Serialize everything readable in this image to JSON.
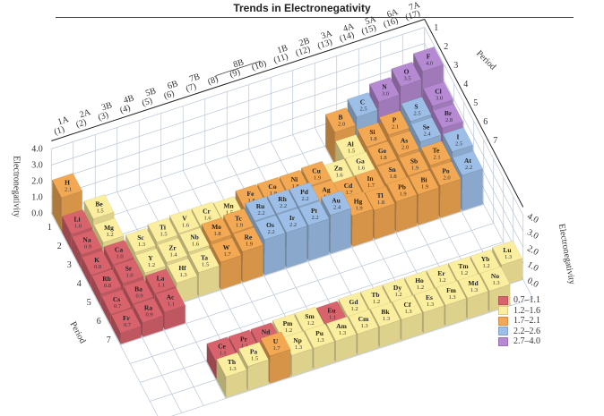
{
  "title": "Trends in Electronegativity",
  "chart_data": {
    "type": "bar3d",
    "title": "Trends in Electronegativity",
    "zlabel": "Electronegativity",
    "depth_label": "Period",
    "zlim": [
      0,
      4
    ],
    "z_ticks": [
      "0.0",
      "1.0",
      "2.0",
      "3.0",
      "4.0"
    ],
    "group_labels": [
      [
        "1A",
        "(1)"
      ],
      [
        "2A",
        "(2)"
      ],
      [
        "3B",
        "(3)"
      ],
      [
        "4B",
        "(4)"
      ],
      [
        "5B",
        "(5)"
      ],
      [
        "6B",
        "(6)"
      ],
      [
        "7B",
        "(7)"
      ],
      [
        "",
        "(8)"
      ],
      [
        "8B",
        "(9)"
      ],
      [
        "",
        "(10)"
      ],
      [
        "1B",
        "(11)"
      ],
      [
        "2B",
        "(12)"
      ],
      [
        "3A",
        "(13)"
      ],
      [
        "4A",
        "(14)"
      ],
      [
        "5A",
        "(15)"
      ],
      [
        "6A",
        "(16)"
      ],
      [
        "7A",
        "(17)"
      ]
    ],
    "period_labels": [
      "1",
      "2",
      "3",
      "4",
      "5",
      "6",
      "7"
    ],
    "legend": [
      {
        "label": "0.7–1.1",
        "color": "#d9636d"
      },
      {
        "label": "1.2–1.6",
        "color": "#fbee9e"
      },
      {
        "label": "1.7–2.1",
        "color": "#f3a853"
      },
      {
        "label": "2.2–2.6",
        "color": "#9dbfe7"
      },
      {
        "label": "2.7–4.0",
        "color": "#b68ad2"
      }
    ],
    "elements": [
      [
        "H",
        1,
        1,
        2.1
      ],
      [
        "Li",
        1,
        2,
        1.0
      ],
      [
        "Be",
        2,
        2,
        1.5
      ],
      [
        "B",
        13,
        2,
        2.0
      ],
      [
        "C",
        14,
        2,
        2.5
      ],
      [
        "N",
        15,
        2,
        3.0
      ],
      [
        "O",
        16,
        2,
        3.5
      ],
      [
        "F",
        17,
        2,
        4.0
      ],
      [
        "Na",
        1,
        3,
        0.9
      ],
      [
        "Mg",
        2,
        3,
        1.2
      ],
      [
        "Al",
        13,
        3,
        1.5
      ],
      [
        "Si",
        14,
        3,
        1.8
      ],
      [
        "P",
        15,
        3,
        2.1
      ],
      [
        "S",
        16,
        3,
        2.5
      ],
      [
        "Cl",
        17,
        3,
        3.0
      ],
      [
        "K",
        1,
        4,
        0.8
      ],
      [
        "Ca",
        2,
        4,
        1.0
      ],
      [
        "Sc",
        3,
        4,
        1.3
      ],
      [
        "Ti",
        4,
        4,
        1.5
      ],
      [
        "V",
        5,
        4,
        1.6
      ],
      [
        "Cr",
        6,
        4,
        1.6
      ],
      [
        "Mn",
        7,
        4,
        1.5
      ],
      [
        "Fe",
        8,
        4,
        1.8
      ],
      [
        "Co",
        9,
        4,
        1.8
      ],
      [
        "Ni",
        10,
        4,
        1.8
      ],
      [
        "Cu",
        11,
        4,
        1.9
      ],
      [
        "Zn",
        12,
        4,
        1.6
      ],
      [
        "Ga",
        13,
        4,
        1.6
      ],
      [
        "Ge",
        14,
        4,
        1.8
      ],
      [
        "As",
        15,
        4,
        2.0
      ],
      [
        "Se",
        16,
        4,
        2.4
      ],
      [
        "Br",
        17,
        4,
        2.8
      ],
      [
        "Rb",
        1,
        5,
        0.8
      ],
      [
        "Sr",
        2,
        5,
        1.0
      ],
      [
        "Y",
        3,
        5,
        1.2
      ],
      [
        "Zr",
        4,
        5,
        1.4
      ],
      [
        "Nb",
        5,
        5,
        1.6
      ],
      [
        "Mo",
        6,
        5,
        1.8
      ],
      [
        "Tc",
        7,
        5,
        1.9
      ],
      [
        "Ru",
        8,
        5,
        2.2
      ],
      [
        "Rh",
        9,
        5,
        2.2
      ],
      [
        "Pd",
        10,
        5,
        2.2
      ],
      [
        "Ag",
        11,
        5,
        1.9
      ],
      [
        "Cd",
        12,
        5,
        1.7
      ],
      [
        "In",
        13,
        5,
        1.7
      ],
      [
        "Sn",
        14,
        5,
        1.8
      ],
      [
        "Sb",
        15,
        5,
        1.9
      ],
      [
        "Te",
        16,
        5,
        2.1
      ],
      [
        "I",
        17,
        5,
        2.5
      ],
      [
        "Cs",
        1,
        6,
        0.7
      ],
      [
        "Ba",
        2,
        6,
        0.9
      ],
      [
        "La",
        3,
        6,
        1.1
      ],
      [
        "Hf",
        4,
        6,
        1.3
      ],
      [
        "Ta",
        5,
        6,
        1.5
      ],
      [
        "W",
        6,
        6,
        1.7
      ],
      [
        "Re",
        7,
        6,
        1.9
      ],
      [
        "Os",
        8,
        6,
        2.2
      ],
      [
        "Ir",
        9,
        6,
        2.2
      ],
      [
        "Pt",
        10,
        6,
        2.2
      ],
      [
        "Au",
        11,
        6,
        2.4
      ],
      [
        "Hg",
        12,
        6,
        1.9
      ],
      [
        "Tl",
        13,
        6,
        1.8
      ],
      [
        "Pb",
        14,
        6,
        1.9
      ],
      [
        "Bi",
        15,
        6,
        1.9
      ],
      [
        "Po",
        16,
        6,
        2.0
      ],
      [
        "At",
        17,
        6,
        2.2
      ],
      [
        "Fr",
        1,
        7,
        0.7
      ],
      [
        "Ra",
        2,
        7,
        0.9
      ],
      [
        "Ac",
        3,
        7,
        1.1
      ]
    ],
    "lanthanides": [
      [
        "Ce",
        1.1
      ],
      [
        "Pr",
        1.1
      ],
      [
        "Nd",
        1.1
      ],
      [
        "Pm",
        1.2
      ],
      [
        "Sm",
        1.2
      ],
      [
        "Eu",
        1.1
      ],
      [
        "Gd",
        1.2
      ],
      [
        "Tb",
        1.2
      ],
      [
        "Dy",
        1.2
      ],
      [
        "Ho",
        1.2
      ],
      [
        "Er",
        1.2
      ],
      [
        "Tm",
        1.2
      ],
      [
        "Yb",
        1.2
      ],
      [
        "Lu",
        1.3
      ]
    ],
    "actinides": [
      [
        "Th",
        1.3
      ],
      [
        "Pa",
        1.5
      ],
      [
        "U",
        1.7
      ],
      [
        "Np",
        1.3
      ],
      [
        "Pu",
        1.3
      ],
      [
        "Am",
        1.3
      ],
      [
        "Cm",
        1.3
      ],
      [
        "Bk",
        1.3
      ],
      [
        "Cf",
        1.3
      ],
      [
        "Es",
        1.3
      ],
      [
        "Fm",
        1.3
      ],
      [
        "Md",
        1.3
      ],
      [
        "No",
        1.3
      ]
    ]
  }
}
